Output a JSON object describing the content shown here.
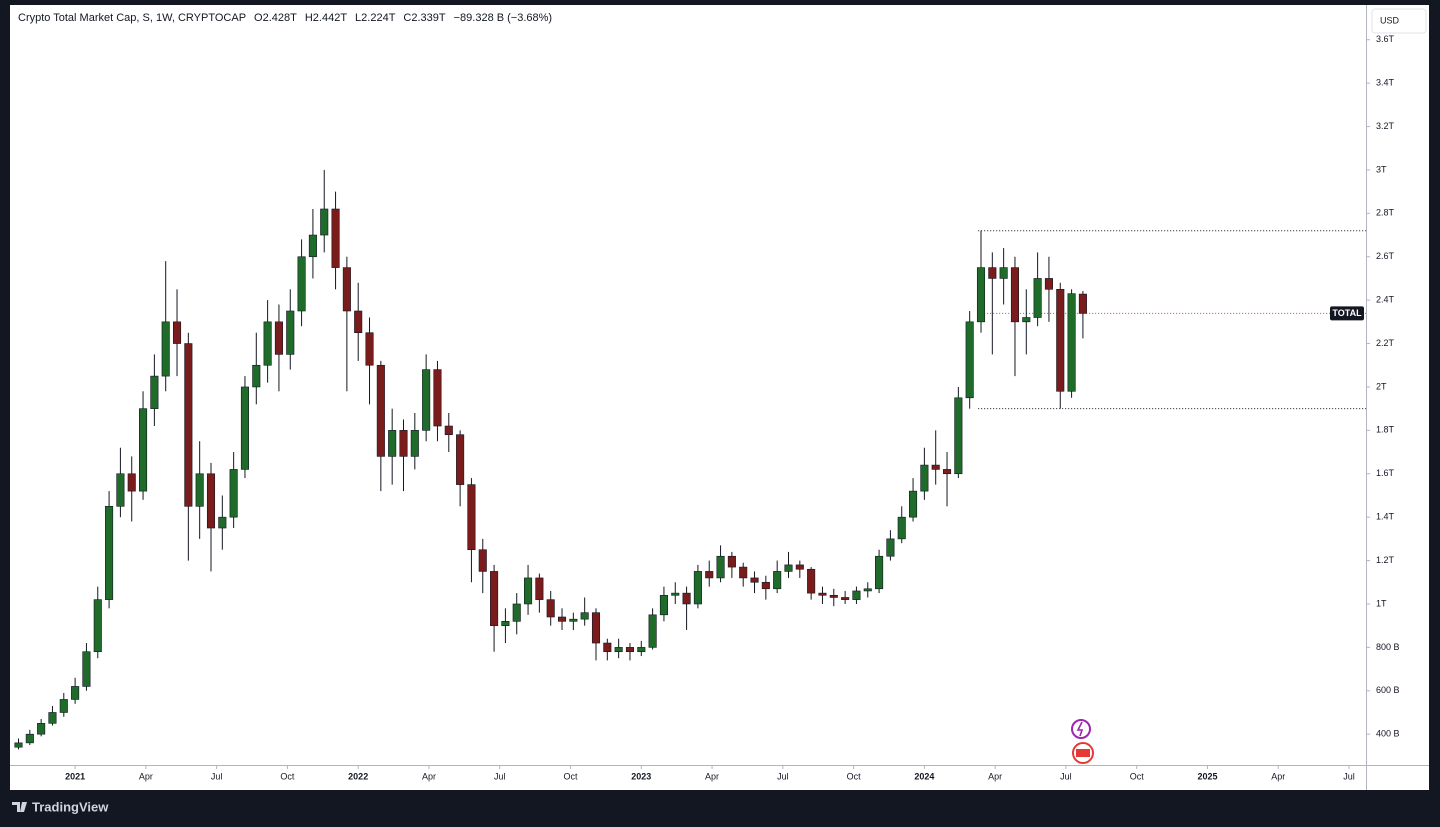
{
  "chart_data": {
    "type": "candlestick",
    "title": "Crypto Total Market Cap, S, 1W, CRYPTOCAP",
    "legend_values": [
      "O2.428T",
      "H2.442T",
      "L2.224T",
      "C2.339T",
      "−89.328 B (−3.68%)"
    ],
    "currency": "USD",
    "price_label": "TOTAL",
    "brand": "TradingView",
    "up_color": "#1e6b2a",
    "down_color": "#7a1c1c",
    "price_line_color": "#e53935",
    "x": [
      2020.8,
      2020.84,
      2020.88,
      2020.92,
      2020.96,
      2021,
      2021.04,
      2021.08,
      2021.12,
      2021.16,
      2021.2,
      2021.24,
      2021.28,
      2021.32,
      2021.36,
      2021.4,
      2021.44,
      2021.48,
      2021.52,
      2021.56,
      2021.6,
      2021.64,
      2021.68,
      2021.72,
      2021.76,
      2021.8,
      2021.84,
      2021.88,
      2021.92,
      2021.96,
      2022,
      2022.04,
      2022.08,
      2022.12,
      2022.16,
      2022.2,
      2022.24,
      2022.28,
      2022.32,
      2022.36,
      2022.4,
      2022.44,
      2022.48,
      2022.52,
      2022.56,
      2022.6,
      2022.64,
      2022.68,
      2022.72,
      2022.76,
      2022.8,
      2022.84,
      2022.88,
      2022.92,
      2022.96,
      2023,
      2023.04,
      2023.08,
      2023.12,
      2023.16,
      2023.2,
      2023.24,
      2023.28,
      2023.32,
      2023.36,
      2023.4,
      2023.44,
      2023.48,
      2023.52,
      2023.56,
      2023.6,
      2023.64,
      2023.68,
      2023.72,
      2023.76,
      2023.8,
      2023.84,
      2023.88,
      2023.92,
      2023.96,
      2024,
      2024.04,
      2024.08,
      2024.12,
      2024.16,
      2024.2,
      2024.24,
      2024.28,
      2024.32,
      2024.36,
      2024.4,
      2024.44,
      2024.48,
      2024.52,
      2024.56
    ],
    "open": [
      0.34,
      0.36,
      0.4,
      0.45,
      0.5,
      0.56,
      0.62,
      0.78,
      1.02,
      1.45,
      1.6,
      1.52,
      1.9,
      2.05,
      2.3,
      2.2,
      1.45,
      1.6,
      1.35,
      1.4,
      1.62,
      2.0,
      2.1,
      2.3,
      2.15,
      2.35,
      2.6,
      2.7,
      2.82,
      2.55,
      2.35,
      2.25,
      2.1,
      1.68,
      1.8,
      1.68,
      1.8,
      2.08,
      1.82,
      1.78,
      1.55,
      1.25,
      1.15,
      0.9,
      0.92,
      1.0,
      1.12,
      1.02,
      0.94,
      0.92,
      0.93,
      0.96,
      0.82,
      0.78,
      0.8,
      0.78,
      0.8,
      0.95,
      1.04,
      1.05,
      1.0,
      1.15,
      1.12,
      1.22,
      1.17,
      1.12,
      1.1,
      1.07,
      1.15,
      1.18,
      1.16,
      1.05,
      1.04,
      1.03,
      1.02,
      1.06,
      1.07,
      1.22,
      1.3,
      1.4,
      1.52,
      1.64,
      1.62,
      1.6,
      1.95,
      2.3,
      2.55,
      2.5,
      2.55,
      2.3,
      2.32,
      2.5,
      2.45,
      1.98,
      2.428
    ],
    "high": [
      0.38,
      0.42,
      0.47,
      0.53,
      0.59,
      0.66,
      0.82,
      1.08,
      1.52,
      1.72,
      1.68,
      1.98,
      2.15,
      2.58,
      2.45,
      2.25,
      1.75,
      1.65,
      1.5,
      1.7,
      2.05,
      2.25,
      2.4,
      2.38,
      2.45,
      2.68,
      2.82,
      3.0,
      2.9,
      2.6,
      2.48,
      2.32,
      2.12,
      1.9,
      1.85,
      1.88,
      2.15,
      2.12,
      1.88,
      1.8,
      1.58,
      1.3,
      1.18,
      0.98,
      1.05,
      1.18,
      1.14,
      1.06,
      0.98,
      0.96,
      1.03,
      0.98,
      0.84,
      0.84,
      0.82,
      0.83,
      0.98,
      1.08,
      1.1,
      1.08,
      1.18,
      1.2,
      1.27,
      1.24,
      1.19,
      1.15,
      1.13,
      1.2,
      1.24,
      1.2,
      1.17,
      1.08,
      1.07,
      1.06,
      1.08,
      1.1,
      1.25,
      1.34,
      1.45,
      1.58,
      1.72,
      1.8,
      1.7,
      2.0,
      2.35,
      2.72,
      2.62,
      2.64,
      2.6,
      2.45,
      2.62,
      2.6,
      2.48,
      2.45,
      2.442
    ],
    "low": [
      0.33,
      0.35,
      0.39,
      0.44,
      0.48,
      0.54,
      0.6,
      0.75,
      0.98,
      1.4,
      1.38,
      1.48,
      1.82,
      1.98,
      2.05,
      1.2,
      1.3,
      1.15,
      1.25,
      1.35,
      1.58,
      1.92,
      2.02,
      1.98,
      2.08,
      2.28,
      2.5,
      2.62,
      2.45,
      1.98,
      2.12,
      1.92,
      1.52,
      1.55,
      1.52,
      1.62,
      1.75,
      1.75,
      1.7,
      1.45,
      1.1,
      1.05,
      0.78,
      0.82,
      0.86,
      0.95,
      0.96,
      0.9,
      0.88,
      0.88,
      0.9,
      0.74,
      0.74,
      0.75,
      0.74,
      0.76,
      0.79,
      0.92,
      1.0,
      0.88,
      0.98,
      1.08,
      1.1,
      1.12,
      1.08,
      1.05,
      1.02,
      1.05,
      1.12,
      1.12,
      1.02,
      1.0,
      0.99,
      1.0,
      1.0,
      1.03,
      1.05,
      1.2,
      1.28,
      1.38,
      1.48,
      1.55,
      1.45,
      1.58,
      1.9,
      2.25,
      2.15,
      2.38,
      2.05,
      2.15,
      2.28,
      2.3,
      1.9,
      1.95,
      2.224
    ],
    "close": [
      0.36,
      0.4,
      0.45,
      0.5,
      0.56,
      0.62,
      0.78,
      1.02,
      1.45,
      1.6,
      1.52,
      1.9,
      2.05,
      2.3,
      2.2,
      1.45,
      1.6,
      1.35,
      1.4,
      1.62,
      2.0,
      2.1,
      2.3,
      2.15,
      2.35,
      2.6,
      2.7,
      2.82,
      2.55,
      2.35,
      2.25,
      2.1,
      1.68,
      1.8,
      1.68,
      1.8,
      2.08,
      1.82,
      1.78,
      1.55,
      1.25,
      1.15,
      0.9,
      0.92,
      1.0,
      1.12,
      1.02,
      0.94,
      0.92,
      0.93,
      0.96,
      0.82,
      0.78,
      0.8,
      0.78,
      0.8,
      0.95,
      1.04,
      1.05,
      1.0,
      1.15,
      1.12,
      1.22,
      1.17,
      1.12,
      1.1,
      1.07,
      1.15,
      1.18,
      1.16,
      1.05,
      1.04,
      1.03,
      1.02,
      1.06,
      1.07,
      1.22,
      1.3,
      1.4,
      1.52,
      1.64,
      1.62,
      1.6,
      1.95,
      2.3,
      2.55,
      2.5,
      2.55,
      2.3,
      2.32,
      2.5,
      2.45,
      1.98,
      2.43,
      2.339
    ],
    "range": {
      "start": 2024.19,
      "top": 2.72,
      "bottom": 1.9
    },
    "xlim": [
      2020.77,
      2025.56
    ],
    "xticks": [
      2021,
      {
        "value": 2021.25,
        "label": "Apr"
      },
      {
        "value": 2021.5,
        "label": "Jul"
      },
      {
        "value": 2021.75,
        "label": "Oct"
      },
      2022,
      {
        "value": 2022.25,
        "label": "Apr"
      },
      {
        "value": 2022.5,
        "label": "Jul"
      },
      {
        "value": 2022.75,
        "label": "Oct"
      },
      2023,
      {
        "value": 2023.25,
        "label": "Apr"
      },
      {
        "value": 2023.5,
        "label": "Jul"
      },
      {
        "value": 2023.75,
        "label": "Oct"
      },
      2024,
      {
        "value": 2024.25,
        "label": "Apr"
      },
      {
        "value": 2024.5,
        "label": "Jul"
      },
      {
        "value": 2024.75,
        "label": "Oct"
      },
      2025,
      {
        "value": 2025.25,
        "label": "Apr"
      },
      {
        "value": 2025.5,
        "label": "Jul"
      }
    ],
    "ylim": [
      0.258,
      3.76
    ],
    "yticks": [
      {
        "value": 0.4,
        "label": "400 B"
      },
      {
        "value": 0.6,
        "label": "600 B"
      },
      {
        "value": 0.8,
        "label": "800 B"
      },
      {
        "value": 1,
        "label": "1T"
      },
      {
        "value": 1.2,
        "label": "1.2T"
      },
      {
        "value": 1.4,
        "label": "1.4T"
      },
      {
        "value": 1.6,
        "label": "1.6T"
      },
      {
        "value": 1.8,
        "label": "1.8T"
      },
      {
        "value": 2,
        "label": "2T"
      },
      {
        "value": 2.2,
        "label": "2.2T"
      },
      {
        "value": 2.4,
        "label": "2.4T"
      },
      {
        "value": 2.6,
        "label": "2.6T"
      },
      {
        "value": 2.8,
        "label": "2.8T"
      },
      {
        "value": 3,
        "label": "3T"
      },
      {
        "value": 3.2,
        "label": "3.2T"
      },
      {
        "value": 3.4,
        "label": "3.4T"
      },
      {
        "value": 3.6,
        "label": "3.6T"
      }
    ]
  }
}
